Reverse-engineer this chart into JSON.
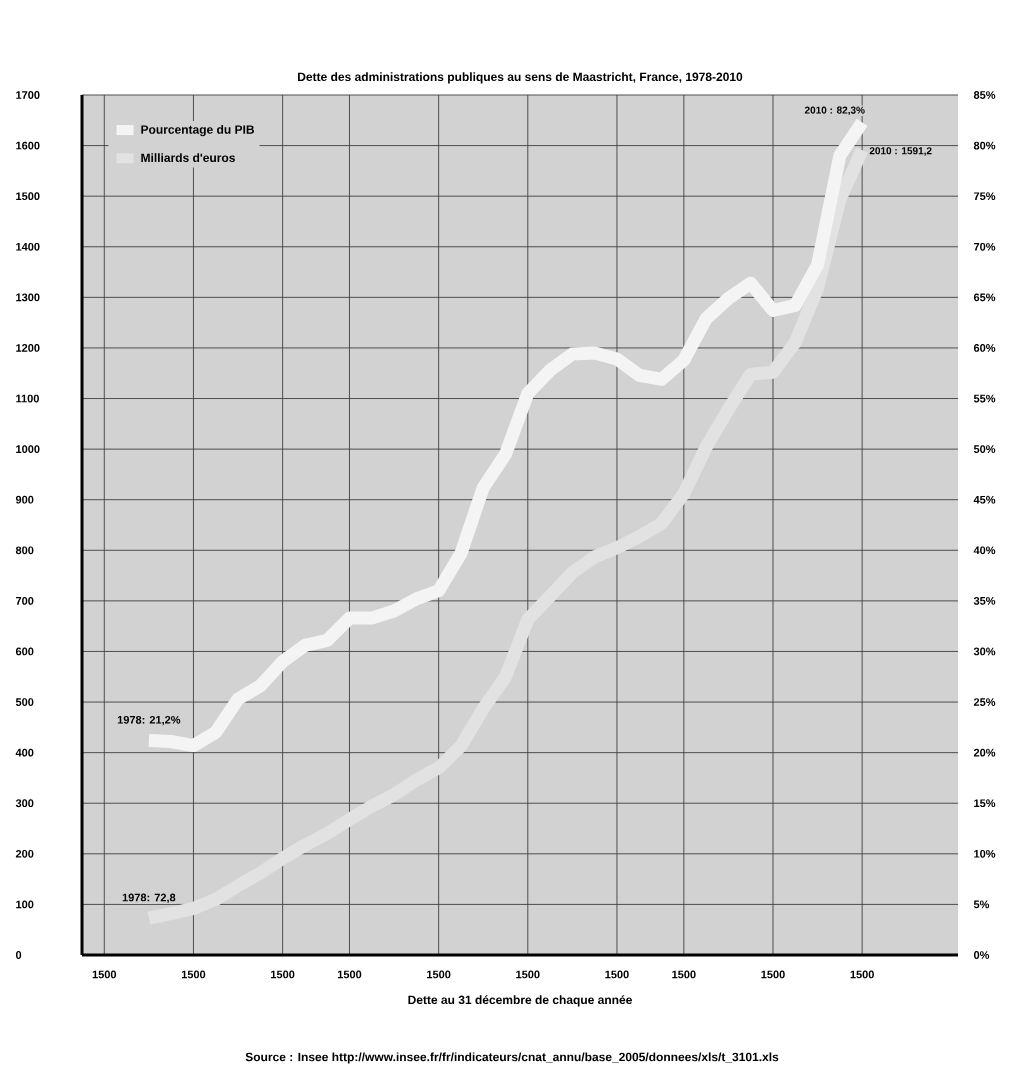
{
  "chart_data": {
    "type": "line",
    "title": "Dette des administrations publiques au sens de Maastricht, France, 1978-2010",
    "xlabel": "Dette au 31 décembre de chaque année",
    "categories": [
      "1500",
      null,
      null,
      null,
      "1500",
      null,
      null,
      null,
      "1500",
      null,
      null,
      "1500",
      null,
      null,
      null,
      "1500",
      null,
      null,
      null,
      "1500",
      null,
      null,
      null,
      "1500",
      null,
      null,
      "1500",
      null,
      null,
      null,
      "1500",
      null,
      null,
      null,
      "1500",
      null,
      null
    ],
    "series": [
      {
        "name": "Pourcentage du PIB",
        "color": "#f4f4f4",
        "axis": "y2",
        "values": [
          null,
          null,
          21.2,
          21.1,
          20.7,
          22.0,
          25.3,
          26.6,
          29.0,
          30.6,
          31.1,
          33.3,
          33.3,
          34.0,
          35.2,
          36.0,
          39.7,
          46.2,
          49.5,
          55.5,
          57.8,
          59.4,
          59.5,
          58.9,
          57.3,
          56.9,
          58.8,
          62.9,
          64.9,
          66.4,
          63.7,
          64.2,
          68.2,
          79.0,
          82.3,
          null,
          null
        ]
      },
      {
        "name": "Milliards d'euros",
        "color": "#e2e2e2",
        "values": [
          null,
          null,
          72.8,
          82,
          92,
          110,
          137,
          162,
          191,
          217,
          240,
          268,
          294,
          317,
          346,
          370,
          413,
          487,
          550,
          663,
          709,
          756,
          787,
          805,
          827,
          853,
          912,
          1004,
          1079,
          1148,
          1152,
          1211,
          1318,
          1493,
          1591.2,
          null,
          null
        ]
      }
    ],
    "ylim": [
      0,
      1700
    ],
    "yticks": [
      0,
      100,
      200,
      300,
      400,
      500,
      600,
      700,
      800,
      900,
      1000,
      1100,
      1200,
      1300,
      1400,
      1500,
      1600,
      1700
    ],
    "y2lim": [
      0,
      85
    ],
    "y2ticks": [
      {
        "value": 0,
        "label": "0%"
      },
      {
        "value": 5,
        "label": "5%"
      },
      {
        "value": 10,
        "label": "10%"
      },
      {
        "value": 15,
        "label": "15%"
      },
      {
        "value": 20,
        "label": "20%"
      },
      {
        "value": 25,
        "label": "25%"
      },
      {
        "value": 30,
        "label": "30%"
      },
      {
        "value": 35,
        "label": "35%"
      },
      {
        "value": 40,
        "label": "40%"
      },
      {
        "value": 45,
        "label": "45%"
      },
      {
        "value": 50,
        "label": "50%"
      },
      {
        "value": 55,
        "label": "55%"
      },
      {
        "value": 60,
        "label": "60%"
      },
      {
        "value": 65,
        "label": "65%"
      },
      {
        "value": 70,
        "label": "70%"
      },
      {
        "value": 75,
        "label": "75%"
      },
      {
        "value": 80,
        "label": "80%"
      },
      {
        "value": 85,
        "label": "85%"
      }
    ],
    "grid": true,
    "legend": "top left",
    "annotations": [
      "1978: 21,2%",
      "1978: 72,8",
      "2010 : 82,3%",
      "2010 : 1591,2",
      "Source : Insee http://www.insee.fr/fr/indicateurs/cnat_annu/base_2005/donnees/xls/t_3101.xls"
    ]
  }
}
